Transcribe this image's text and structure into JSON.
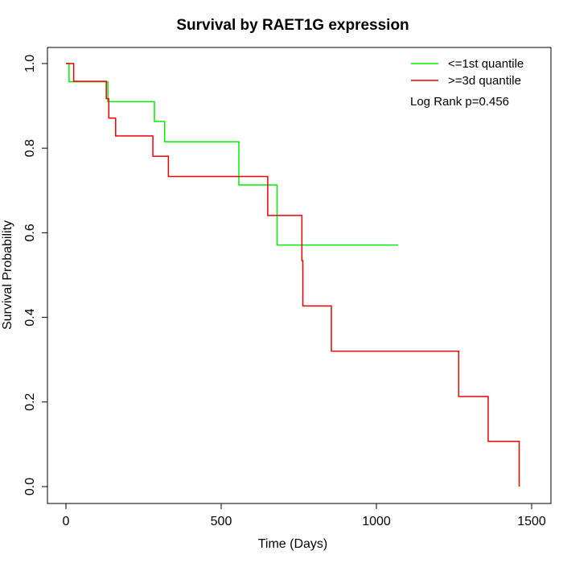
{
  "chart_data": {
    "type": "line",
    "subtype": "kaplan-meier step",
    "title": "Survival by RAET1G expression",
    "xlabel": "Time (Days)",
    "ylabel": "Survival Probability",
    "xlim": [
      0,
      1500
    ],
    "ylim": [
      0,
      1.0
    ],
    "x_ticks": [
      "0",
      "500",
      "1000",
      "1500"
    ],
    "y_ticks": [
      "0.0",
      "0.2",
      "0.4",
      "0.6",
      "0.8",
      "1.0"
    ],
    "x_tick_values": [
      0,
      500,
      1000,
      1500
    ],
    "y_tick_values": [
      0,
      0.2,
      0.4,
      0.6,
      0.8,
      1.0
    ],
    "grid": false,
    "legend_position": "top-right",
    "annotation": "Log Rank p=0.456",
    "series": [
      {
        "name": "<=1st quantile",
        "color": "#00ee00",
        "x": [
          0,
          10,
          135,
          285,
          318,
          557,
          680,
          1070
        ],
        "y": [
          1.0,
          0.957,
          0.91,
          0.863,
          0.815,
          0.713,
          0.571,
          0.571
        ]
      },
      {
        "name": ">=3d quantile",
        "color": "#ee0000",
        "x": [
          0,
          25,
          130,
          138,
          160,
          280,
          330,
          650,
          760,
          763,
          855,
          1265,
          1360,
          1460
        ],
        "y": [
          1.0,
          0.958,
          0.917,
          0.871,
          0.829,
          0.781,
          0.733,
          0.641,
          0.534,
          0.427,
          0.32,
          0.213,
          0.107,
          0.0
        ]
      }
    ]
  }
}
